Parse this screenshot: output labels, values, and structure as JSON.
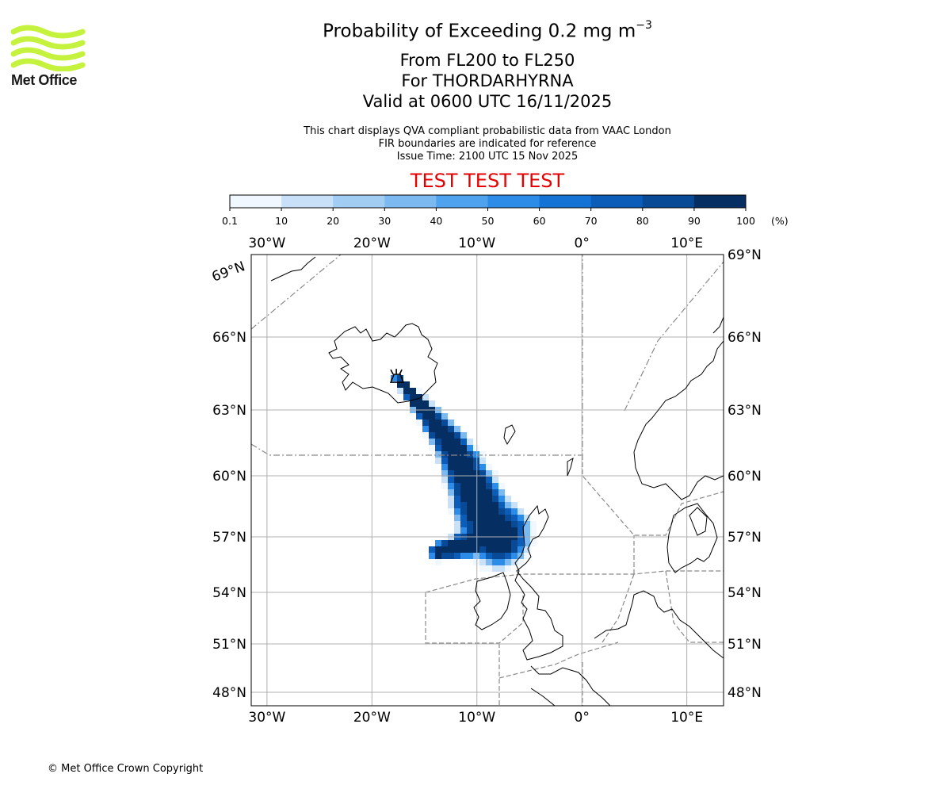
{
  "brand": {
    "name": "Met Office",
    "colors": {
      "logo_lime": "#c5f23c",
      "text": "#1a1a1a"
    }
  },
  "header": {
    "title_main": "Probability of Exceeding 0.2 mg m",
    "title_exponent": "−3",
    "level_range": "From FL200 to FL250",
    "volcano_line": "For THORDARHYRNA",
    "valid_time": "Valid at 0600 UTC 16/11/2025",
    "note_1": "This chart displays QVA compliant probabilistic data from VAAC London",
    "note_2": "FIR boundaries are indicated for reference",
    "issue_time": "Issue Time: 2100 UTC 15 Nov 2025",
    "test_banner": "TEST TEST TEST"
  },
  "colorbar": {
    "unit_label": "(%)",
    "ticks": [
      "0.1",
      "10",
      "20",
      "30",
      "40",
      "50",
      "60",
      "70",
      "80",
      "90",
      "100"
    ],
    "colors": [
      "#f0f7ff",
      "#c8e0f8",
      "#a2cdf3",
      "#7cb9f0",
      "#4fa2ee",
      "#2d8ce8",
      "#1673d6",
      "#0c5db8",
      "#094a96",
      "#052f63"
    ]
  },
  "map": {
    "lon_ticks": [
      "30°W",
      "20°W",
      "10°W",
      "0°",
      "10°E"
    ],
    "lon_values": [
      -30,
      -20,
      -10,
      0,
      10
    ],
    "lat_ticks": [
      "48°N",
      "51°N",
      "54°N",
      "57°N",
      "60°N",
      "63°N",
      "66°N",
      "69°N"
    ],
    "lat_values": [
      48,
      51,
      54,
      57,
      60,
      63,
      66,
      69
    ],
    "extent": {
      "lon_min": -31.5,
      "lon_max": 13.5,
      "lat_min": 47.6,
      "lat_max": 69.0
    },
    "grid": true,
    "volcano": {
      "name": "THORDARHYRNA",
      "lon": -17.6,
      "lat": 64.3,
      "icon": "volcano-icon"
    },
    "plume_axis": [
      [
        -17.6,
        64.3
      ],
      [
        -16.2,
        63.6
      ],
      [
        -14.5,
        62.7
      ],
      [
        -12.7,
        61.6
      ],
      [
        -11.3,
        60.4
      ],
      [
        -10.2,
        59.1
      ],
      [
        -9.2,
        57.9
      ],
      [
        -8.0,
        57.1
      ]
    ],
    "plume_tail": [
      [
        -8.0,
        57.1
      ],
      [
        -10.0,
        56.7
      ],
      [
        -12.4,
        56.4
      ],
      [
        -13.6,
        56.2
      ]
    ]
  },
  "footer": {
    "copyright": "© Met Office Crown Copyright"
  }
}
